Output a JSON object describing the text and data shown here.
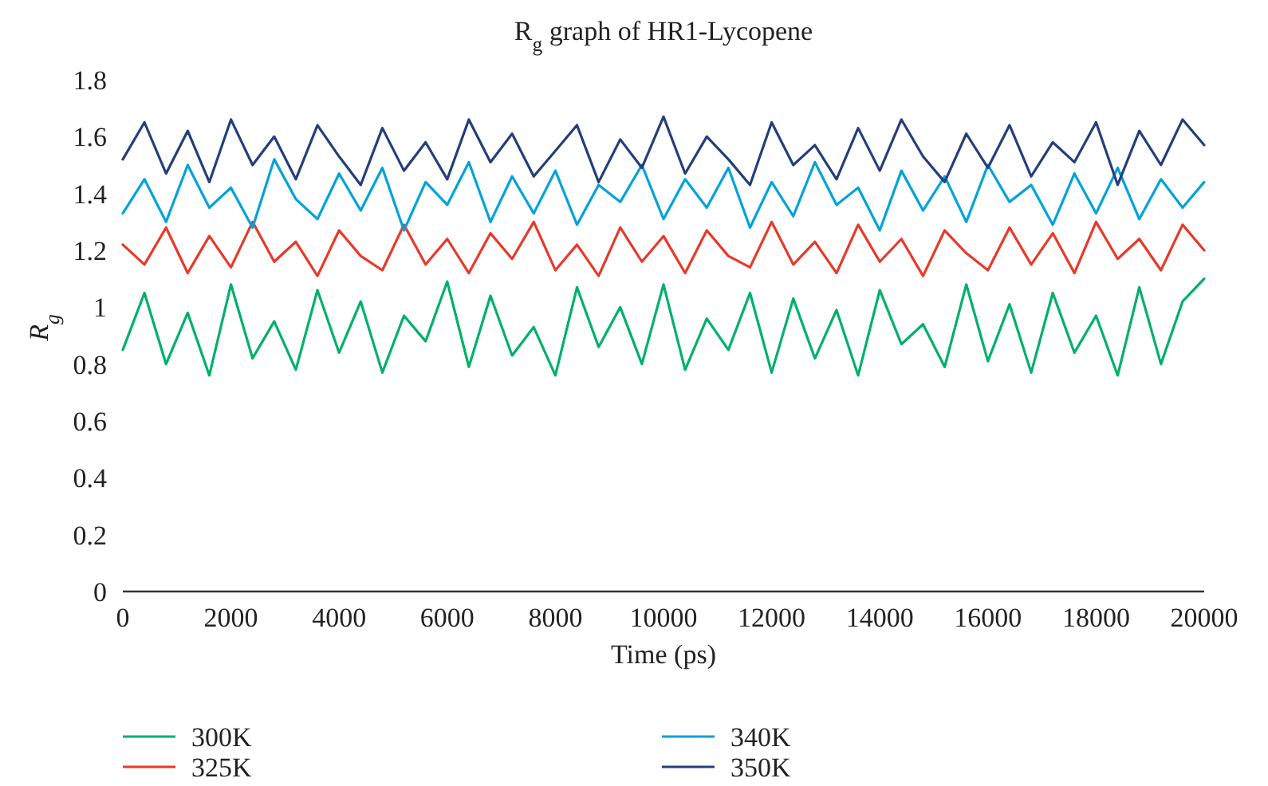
{
  "chart_data": {
    "type": "line",
    "title": "R$_{g}$ graph of HR1-Lycopene",
    "xlabel": "Time (ps)",
    "ylabel": "R$_{g}$",
    "x": [
      0,
      400,
      800,
      1200,
      1600,
      2000,
      2400,
      2800,
      3200,
      3600,
      4000,
      4400,
      4800,
      5200,
      5600,
      6000,
      6400,
      6800,
      7200,
      7600,
      8000,
      8400,
      8800,
      9200,
      9600,
      10000,
      10400,
      10800,
      11200,
      11600,
      12000,
      12400,
      12800,
      13200,
      13600,
      14000,
      14400,
      14800,
      15200,
      15600,
      16000,
      16400,
      16800,
      17200,
      17600,
      18000,
      18400,
      18800,
      19200,
      19600,
      20000
    ],
    "xlim": [
      0,
      20000
    ],
    "xticks": [
      0,
      2000,
      4000,
      6000,
      8000,
      10000,
      12000,
      14000,
      16000,
      18000,
      20000
    ],
    "ylim": [
      0,
      1.8
    ],
    "yticks": [
      0,
      0.2,
      0.4,
      0.6,
      0.8,
      1,
      1.2,
      1.4,
      1.6,
      1.8
    ],
    "grid": false,
    "legend": "bottom",
    "line_style": "solid",
    "series": [
      {
        "name": "300K",
        "color": "#00b06b",
        "values": [
          0.85,
          1.05,
          0.8,
          0.98,
          0.76,
          1.08,
          0.82,
          0.95,
          0.78,
          1.06,
          0.84,
          1.02,
          0.77,
          0.97,
          0.88,
          1.09,
          0.79,
          1.04,
          0.83,
          0.93,
          0.76,
          1.07,
          0.86,
          1.0,
          0.8,
          1.08,
          0.78,
          0.96,
          0.85,
          1.05,
          0.77,
          1.03,
          0.82,
          0.99,
          0.76,
          1.06,
          0.87,
          0.94,
          0.79,
          1.08,
          0.81,
          1.01,
          0.77,
          1.05,
          0.84,
          0.97,
          0.76,
          1.07,
          0.8,
          1.02,
          1.1
        ]
      },
      {
        "name": "325K",
        "color": "#e8392a",
        "values": [
          1.22,
          1.15,
          1.28,
          1.12,
          1.25,
          1.14,
          1.3,
          1.16,
          1.23,
          1.11,
          1.27,
          1.18,
          1.13,
          1.29,
          1.15,
          1.24,
          1.12,
          1.26,
          1.17,
          1.3,
          1.13,
          1.22,
          1.11,
          1.28,
          1.16,
          1.25,
          1.12,
          1.27,
          1.18,
          1.14,
          1.3,
          1.15,
          1.23,
          1.12,
          1.29,
          1.16,
          1.24,
          1.11,
          1.27,
          1.19,
          1.13,
          1.28,
          1.15,
          1.26,
          1.12,
          1.3,
          1.17,
          1.24,
          1.13,
          1.29,
          1.2
        ]
      },
      {
        "name": "340K",
        "color": "#00a3d9",
        "values": [
          1.33,
          1.45,
          1.3,
          1.5,
          1.35,
          1.42,
          1.28,
          1.52,
          1.38,
          1.31,
          1.47,
          1.34,
          1.49,
          1.27,
          1.44,
          1.36,
          1.51,
          1.3,
          1.46,
          1.33,
          1.48,
          1.29,
          1.43,
          1.37,
          1.5,
          1.31,
          1.45,
          1.35,
          1.49,
          1.28,
          1.44,
          1.32,
          1.51,
          1.36,
          1.42,
          1.27,
          1.48,
          1.34,
          1.46,
          1.3,
          1.5,
          1.37,
          1.43,
          1.29,
          1.47,
          1.33,
          1.49,
          1.31,
          1.45,
          1.35,
          1.44
        ]
      },
      {
        "name": "350K",
        "color": "#243f7a",
        "values": [
          1.52,
          1.65,
          1.47,
          1.62,
          1.44,
          1.66,
          1.5,
          1.6,
          1.45,
          1.64,
          1.53,
          1.43,
          1.63,
          1.48,
          1.58,
          1.45,
          1.66,
          1.51,
          1.61,
          1.46,
          1.55,
          1.64,
          1.44,
          1.59,
          1.49,
          1.67,
          1.47,
          1.6,
          1.52,
          1.43,
          1.65,
          1.5,
          1.57,
          1.45,
          1.63,
          1.48,
          1.66,
          1.53,
          1.44,
          1.61,
          1.49,
          1.64,
          1.46,
          1.58,
          1.51,
          1.65,
          1.43,
          1.62,
          1.5,
          1.66,
          1.57
        ]
      }
    ]
  }
}
